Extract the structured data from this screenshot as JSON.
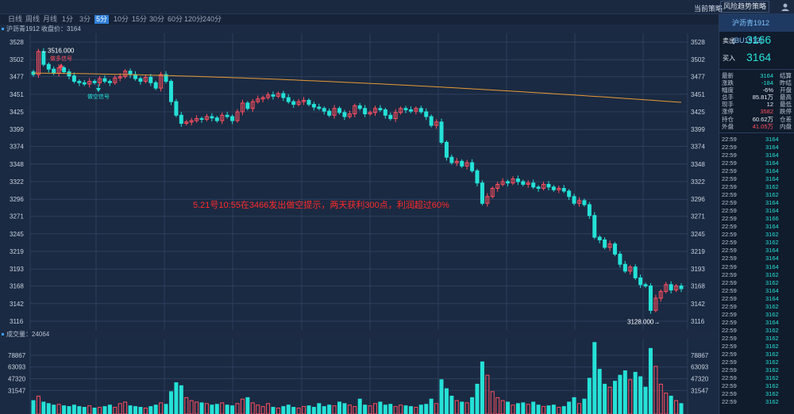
{
  "topbar": {
    "current_strategy_label": "当前策略",
    "strategy_select": "风险趋势策略",
    "user_icon": "user-icon"
  },
  "periods": [
    "日线",
    "周线",
    "月线",
    "1分",
    "3分",
    "5分",
    "10分",
    "15分",
    "30分",
    "60分",
    "120分",
    "240分"
  ],
  "active_period": "5分",
  "chart_header": "沪沥青1912  收盘价：3164",
  "volume_header": "成交量：24064",
  "annotation": "5.21号10:55在3466发出做空提示，两天获利300点，利润超过60%",
  "markers": {
    "high_label": "←3516.000",
    "low_label": "3128.000→",
    "buy_signal": "做多信号",
    "sell_signal": "做空信号"
  },
  "colors": {
    "up": "#ff4f5e",
    "down": "#25e1d7",
    "ma": "#e89a35",
    "grid": "#2c3f5e",
    "annotation": "#ff2a2a"
  },
  "chart_data": {
    "type": "candlestick",
    "title": "沪沥青1912",
    "price_ticks": [
      3528,
      3502,
      3477,
      3451,
      3425,
      3399,
      3374,
      3348,
      3322,
      3296,
      3271,
      3245,
      3219,
      3193,
      3168,
      3142,
      3116
    ],
    "price_range": [
      3116,
      3528
    ],
    "volume_ticks": [
      78867,
      63093,
      47320,
      31547
    ],
    "volume_range": [
      0,
      99000
    ],
    "ma_start": 3482,
    "ma_end": 3439,
    "close": 3164,
    "high": 3516,
    "low": 3128,
    "candles": [
      {
        "c": 3480,
        "v": 18000
      },
      {
        "c": 3514,
        "v": 24000
      },
      {
        "c": 3495,
        "v": 16000
      },
      {
        "c": 3488,
        "v": 14000
      },
      {
        "c": 3482,
        "v": 12000
      },
      {
        "c": 3490,
        "v": 13000
      },
      {
        "c": 3484,
        "v": 11000
      },
      {
        "c": 3478,
        "v": 10000
      },
      {
        "c": 3470,
        "v": 12000
      },
      {
        "c": 3468,
        "v": 10000
      },
      {
        "c": 3466,
        "v": 9000
      },
      {
        "c": 3470,
        "v": 11000
      },
      {
        "c": 3468,
        "v": 8000
      },
      {
        "c": 3474,
        "v": 9000
      },
      {
        "c": 3470,
        "v": 10000
      },
      {
        "c": 3468,
        "v": 12000
      },
      {
        "c": 3475,
        "v": 9000
      },
      {
        "c": 3477,
        "v": 14000
      },
      {
        "c": 3485,
        "v": 16000
      },
      {
        "c": 3480,
        "v": 11000
      },
      {
        "c": 3474,
        "v": 10000
      },
      {
        "c": 3470,
        "v": 9000
      },
      {
        "c": 3476,
        "v": 8000
      },
      {
        "c": 3468,
        "v": 10000
      },
      {
        "c": 3460,
        "v": 12000
      },
      {
        "c": 3480,
        "v": 15000
      },
      {
        "c": 3470,
        "v": 13000
      },
      {
        "c": 3440,
        "v": 30000
      },
      {
        "c": 3420,
        "v": 42000
      },
      {
        "c": 3408,
        "v": 38000
      },
      {
        "c": 3410,
        "v": 22000
      },
      {
        "c": 3412,
        "v": 18000
      },
      {
        "c": 3415,
        "v": 16000
      },
      {
        "c": 3414,
        "v": 15000
      },
      {
        "c": 3418,
        "v": 14000
      },
      {
        "c": 3416,
        "v": 12000
      },
      {
        "c": 3412,
        "v": 13000
      },
      {
        "c": 3420,
        "v": 15000
      },
      {
        "c": 3418,
        "v": 12000
      },
      {
        "c": 3412,
        "v": 11000
      },
      {
        "c": 3425,
        "v": 14000
      },
      {
        "c": 3438,
        "v": 20000
      },
      {
        "c": 3430,
        "v": 22000
      },
      {
        "c": 3440,
        "v": 15000
      },
      {
        "c": 3444,
        "v": 12000
      },
      {
        "c": 3446,
        "v": 10000
      },
      {
        "c": 3450,
        "v": 14000
      },
      {
        "c": 3448,
        "v": 9000
      },
      {
        "c": 3452,
        "v": 8000
      },
      {
        "c": 3446,
        "v": 10000
      },
      {
        "c": 3440,
        "v": 12000
      },
      {
        "c": 3436,
        "v": 9000
      },
      {
        "c": 3440,
        "v": 8000
      },
      {
        "c": 3442,
        "v": 10000
      },
      {
        "c": 3436,
        "v": 11000
      },
      {
        "c": 3432,
        "v": 9000
      },
      {
        "c": 3430,
        "v": 14000
      },
      {
        "c": 3426,
        "v": 10000
      },
      {
        "c": 3420,
        "v": 12000
      },
      {
        "c": 3430,
        "v": 11000
      },
      {
        "c": 3424,
        "v": 16000
      },
      {
        "c": 3418,
        "v": 14000
      },
      {
        "c": 3422,
        "v": 12000
      },
      {
        "c": 3434,
        "v": 10000
      },
      {
        "c": 3430,
        "v": 20000
      },
      {
        "c": 3422,
        "v": 12000
      },
      {
        "c": 3424,
        "v": 11000
      },
      {
        "c": 3430,
        "v": 14000
      },
      {
        "c": 3428,
        "v": 16000
      },
      {
        "c": 3420,
        "v": 12000
      },
      {
        "c": 3415,
        "v": 13000
      },
      {
        "c": 3424,
        "v": 10000
      },
      {
        "c": 3430,
        "v": 12000
      },
      {
        "c": 3428,
        "v": 11000
      },
      {
        "c": 3426,
        "v": 10000
      },
      {
        "c": 3430,
        "v": 9000
      },
      {
        "c": 3425,
        "v": 12000
      },
      {
        "c": 3418,
        "v": 13000
      },
      {
        "c": 3405,
        "v": 20000
      },
      {
        "c": 3410,
        "v": 14000
      },
      {
        "c": 3380,
        "v": 46000
      },
      {
        "c": 3358,
        "v": 34000
      },
      {
        "c": 3350,
        "v": 24000
      },
      {
        "c": 3352,
        "v": 18000
      },
      {
        "c": 3345,
        "v": 16000
      },
      {
        "c": 3350,
        "v": 15000
      },
      {
        "c": 3338,
        "v": 22000
      },
      {
        "c": 3320,
        "v": 40000
      },
      {
        "c": 3290,
        "v": 70000
      },
      {
        "c": 3300,
        "v": 52000
      },
      {
        "c": 3312,
        "v": 30000
      },
      {
        "c": 3318,
        "v": 22000
      },
      {
        "c": 3322,
        "v": 18000
      },
      {
        "c": 3320,
        "v": 16000
      },
      {
        "c": 3326,
        "v": 12000
      },
      {
        "c": 3322,
        "v": 14000
      },
      {
        "c": 3318,
        "v": 15000
      },
      {
        "c": 3320,
        "v": 13000
      },
      {
        "c": 3314,
        "v": 16000
      },
      {
        "c": 3312,
        "v": 12000
      },
      {
        "c": 3318,
        "v": 10000
      },
      {
        "c": 3314,
        "v": 11000
      },
      {
        "c": 3310,
        "v": 12000
      },
      {
        "c": 3312,
        "v": 9000
      },
      {
        "c": 3308,
        "v": 10000
      },
      {
        "c": 3300,
        "v": 16000
      },
      {
        "c": 3290,
        "v": 22000
      },
      {
        "c": 3294,
        "v": 14000
      },
      {
        "c": 3288,
        "v": 20000
      },
      {
        "c": 3272,
        "v": 48000
      },
      {
        "c": 3240,
        "v": 96000
      },
      {
        "c": 3236,
        "v": 60000
      },
      {
        "c": 3225,
        "v": 40000
      },
      {
        "c": 3230,
        "v": 36000
      },
      {
        "c": 3215,
        "v": 44000
      },
      {
        "c": 3200,
        "v": 52000
      },
      {
        "c": 3190,
        "v": 58000
      },
      {
        "c": 3196,
        "v": 46000
      },
      {
        "c": 3180,
        "v": 56000
      },
      {
        "c": 3170,
        "v": 50000
      },
      {
        "c": 3168,
        "v": 36000
      },
      {
        "c": 3132,
        "v": 88000
      },
      {
        "c": 3150,
        "v": 64000
      },
      {
        "c": 3160,
        "v": 40000
      },
      {
        "c": 3170,
        "v": 28000
      },
      {
        "c": 3162,
        "v": 24000
      },
      {
        "c": 3168,
        "v": 18000
      },
      {
        "c": 3164,
        "v": 14000
      }
    ]
  },
  "right_panel": {
    "title": "沪沥青1912 (BU1912)",
    "ask_label": "卖出",
    "ask_value": "3166",
    "bid_label": "买入",
    "bid_value": "3164",
    "quote_rows": [
      {
        "l1": "最新",
        "v1": "3164",
        "l2": "结算",
        "color": "#25e1d7"
      },
      {
        "l1": "涨跌",
        "v1": "-184",
        "l2": "昨结",
        "color": "#25e1d7"
      },
      {
        "l1": "幅度",
        "v1": "-6%",
        "l2": "开盘",
        "color": "#e6ecf4"
      },
      {
        "l1": "总手",
        "v1": "85.81万",
        "l2": "最高",
        "color": "#e6ecf4"
      },
      {
        "l1": "现手",
        "v1": "12",
        "l2": "最低",
        "color": "#e6ecf4"
      },
      {
        "l1": "涨停",
        "v1": "3582",
        "l2": "跌停",
        "color": "#ff4f5e"
      },
      {
        "l1": "持仓",
        "v1": "60.62万",
        "l2": "仓差",
        "color": "#e6ecf4"
      },
      {
        "l1": "外盘",
        "v1": "41.05万",
        "l2": "内盘",
        "color": "#ff4f5e"
      }
    ],
    "ticks": [
      {
        "t": "22:59",
        "p": "3164"
      },
      {
        "t": "22:59",
        "p": "3164"
      },
      {
        "t": "22:59",
        "p": "3164"
      },
      {
        "t": "22:59",
        "p": "3164"
      },
      {
        "t": "22:59",
        "p": "3164"
      },
      {
        "t": "22:59",
        "p": "3164"
      },
      {
        "t": "22:59",
        "p": "3162"
      },
      {
        "t": "22:59",
        "p": "3162"
      },
      {
        "t": "22:59",
        "p": "3164"
      },
      {
        "t": "22:59",
        "p": "3164"
      },
      {
        "t": "22:59",
        "p": "3166"
      },
      {
        "t": "22:59",
        "p": "3164"
      },
      {
        "t": "22:59",
        "p": "3162"
      },
      {
        "t": "22:59",
        "p": "3162"
      },
      {
        "t": "22:59",
        "p": "3164"
      },
      {
        "t": "22:59",
        "p": "3164"
      },
      {
        "t": "22:59",
        "p": "3164"
      },
      {
        "t": "22:59",
        "p": "3162"
      },
      {
        "t": "22:59",
        "p": "3162"
      },
      {
        "t": "22:59",
        "p": "3164"
      },
      {
        "t": "22:59",
        "p": "3164"
      },
      {
        "t": "22:59",
        "p": "3162"
      },
      {
        "t": "22:59",
        "p": "3162"
      },
      {
        "t": "22:59",
        "p": "3164"
      },
      {
        "t": "22:59",
        "p": "3162"
      },
      {
        "t": "22:59",
        "p": "3162"
      },
      {
        "t": "22:59",
        "p": "3162"
      },
      {
        "t": "22:59",
        "p": "3162"
      },
      {
        "t": "22:59",
        "p": "3162"
      },
      {
        "t": "22:59",
        "p": "3162"
      },
      {
        "t": "22:59",
        "p": "3162"
      },
      {
        "t": "22:59",
        "p": "3162"
      },
      {
        "t": "22:59",
        "p": "3162"
      },
      {
        "t": "22:59",
        "p": "3162"
      }
    ]
  }
}
